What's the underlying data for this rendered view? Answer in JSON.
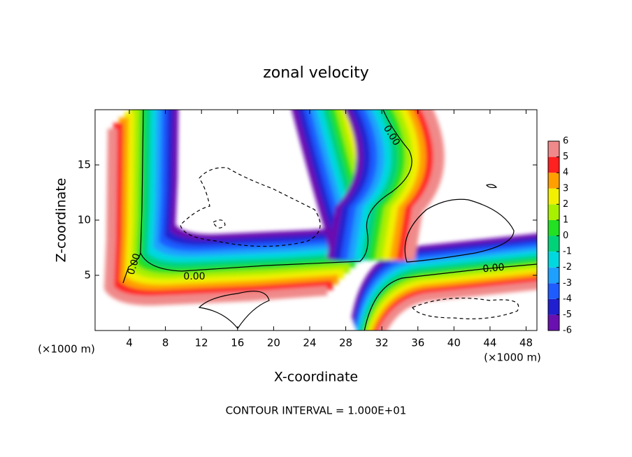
{
  "chart_data": {
    "type": "contour",
    "title": "zonal velocity",
    "xlabel": "X-coordinate",
    "ylabel": "Z-coordinate",
    "x_unit": "(×1000 m)",
    "x_unit_right": "(×1000 m)",
    "footer": "CONTOUR INTERVAL = 1.000E+01",
    "xlim": [
      0.2,
      49.2
    ],
    "ylim": [
      0,
      20
    ],
    "xticks": [
      4,
      8,
      12,
      16,
      20,
      24,
      28,
      32,
      36,
      40,
      44,
      48
    ],
    "yticks": [
      5,
      10,
      15
    ],
    "contour_labels": [
      "0.00",
      "0.00",
      "0.00",
      "0.00"
    ],
    "colorbar": {
      "ticks": [
        -6,
        -5,
        -4,
        -3,
        -2,
        -1,
        0,
        1,
        2,
        3,
        4,
        5,
        6
      ],
      "colors": [
        "#6a10b0",
        "#2020d0",
        "#1e5cff",
        "#1ea0ff",
        "#00d8e0",
        "#00d27a",
        "#22e022",
        "#a8f000",
        "#f2f000",
        "#ffa000",
        "#ff2020",
        "#f08a8a"
      ]
    }
  }
}
